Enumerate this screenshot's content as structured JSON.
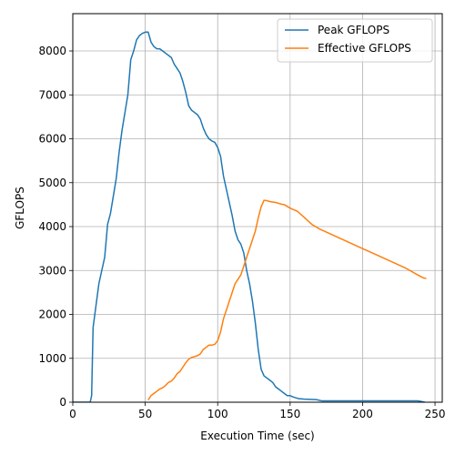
{
  "chart_data": {
    "type": "line",
    "title": "",
    "xlabel": "Execution Time (sec)",
    "ylabel": "GFLOPS",
    "xlim": [
      0,
      255
    ],
    "ylim": [
      0,
      8850
    ],
    "xticks": [
      0,
      50,
      100,
      150,
      200,
      250
    ],
    "yticks": [
      0,
      1000,
      2000,
      3000,
      4000,
      5000,
      6000,
      7000,
      8000
    ],
    "grid": true,
    "legend_position": "top-right",
    "series": [
      {
        "name": "Peak GFLOPS",
        "color": "#1f77b4",
        "points": [
          [
            0,
            0
          ],
          [
            5,
            0
          ],
          [
            12,
            0
          ],
          [
            13,
            150
          ],
          [
            14,
            1700
          ],
          [
            16,
            2200
          ],
          [
            18,
            2700
          ],
          [
            20,
            3000
          ],
          [
            22,
            3300
          ],
          [
            24,
            4050
          ],
          [
            26,
            4300
          ],
          [
            28,
            4700
          ],
          [
            30,
            5100
          ],
          [
            32,
            5700
          ],
          [
            34,
            6200
          ],
          [
            36,
            6600
          ],
          [
            38,
            7000
          ],
          [
            40,
            7800
          ],
          [
            42,
            8000
          ],
          [
            44,
            8250
          ],
          [
            46,
            8350
          ],
          [
            48,
            8400
          ],
          [
            50,
            8430
          ],
          [
            52,
            8430
          ],
          [
            54,
            8200
          ],
          [
            56,
            8100
          ],
          [
            58,
            8050
          ],
          [
            60,
            8050
          ],
          [
            62,
            8000
          ],
          [
            64,
            7950
          ],
          [
            66,
            7900
          ],
          [
            68,
            7850
          ],
          [
            70,
            7700
          ],
          [
            72,
            7600
          ],
          [
            74,
            7500
          ],
          [
            76,
            7300
          ],
          [
            78,
            7050
          ],
          [
            80,
            6750
          ],
          [
            82,
            6650
          ],
          [
            84,
            6600
          ],
          [
            86,
            6550
          ],
          [
            88,
            6450
          ],
          [
            90,
            6250
          ],
          [
            92,
            6100
          ],
          [
            94,
            6000
          ],
          [
            96,
            5950
          ],
          [
            98,
            5920
          ],
          [
            100,
            5800
          ],
          [
            102,
            5600
          ],
          [
            104,
            5150
          ],
          [
            106,
            4850
          ],
          [
            108,
            4550
          ],
          [
            110,
            4250
          ],
          [
            112,
            3900
          ],
          [
            114,
            3700
          ],
          [
            116,
            3600
          ],
          [
            118,
            3400
          ],
          [
            120,
            3000
          ],
          [
            122,
            2700
          ],
          [
            124,
            2300
          ],
          [
            126,
            1800
          ],
          [
            128,
            1200
          ],
          [
            130,
            750
          ],
          [
            132,
            600
          ],
          [
            134,
            550
          ],
          [
            136,
            500
          ],
          [
            138,
            450
          ],
          [
            140,
            350
          ],
          [
            142,
            300
          ],
          [
            144,
            250
          ],
          [
            146,
            200
          ],
          [
            148,
            150
          ],
          [
            150,
            150
          ],
          [
            152,
            120
          ],
          [
            154,
            100
          ],
          [
            156,
            80
          ],
          [
            160,
            70
          ],
          [
            168,
            60
          ],
          [
            172,
            30
          ],
          [
            180,
            30
          ],
          [
            200,
            30
          ],
          [
            220,
            30
          ],
          [
            238,
            30
          ],
          [
            240,
            20
          ],
          [
            243,
            0
          ]
        ]
      },
      {
        "name": "Effective GFLOPS",
        "color": "#ff7f0e",
        "points": [
          [
            52,
            50
          ],
          [
            54,
            150
          ],
          [
            56,
            200
          ],
          [
            58,
            250
          ],
          [
            60,
            300
          ],
          [
            62,
            330
          ],
          [
            64,
            380
          ],
          [
            66,
            450
          ],
          [
            68,
            480
          ],
          [
            70,
            550
          ],
          [
            72,
            650
          ],
          [
            74,
            700
          ],
          [
            76,
            800
          ],
          [
            78,
            900
          ],
          [
            80,
            980
          ],
          [
            82,
            1020
          ],
          [
            84,
            1040
          ],
          [
            86,
            1060
          ],
          [
            88,
            1100
          ],
          [
            90,
            1200
          ],
          [
            92,
            1250
          ],
          [
            94,
            1300
          ],
          [
            96,
            1300
          ],
          [
            98,
            1320
          ],
          [
            100,
            1400
          ],
          [
            102,
            1600
          ],
          [
            104,
            1900
          ],
          [
            106,
            2100
          ],
          [
            108,
            2300
          ],
          [
            110,
            2500
          ],
          [
            112,
            2700
          ],
          [
            114,
            2800
          ],
          [
            116,
            2900
          ],
          [
            118,
            3100
          ],
          [
            120,
            3300
          ],
          [
            122,
            3500
          ],
          [
            124,
            3700
          ],
          [
            126,
            3900
          ],
          [
            128,
            4200
          ],
          [
            130,
            4450
          ],
          [
            132,
            4600
          ],
          [
            134,
            4590
          ],
          [
            136,
            4570
          ],
          [
            138,
            4560
          ],
          [
            140,
            4550
          ],
          [
            142,
            4530
          ],
          [
            144,
            4510
          ],
          [
            146,
            4500
          ],
          [
            148,
            4460
          ],
          [
            150,
            4420
          ],
          [
            152,
            4390
          ],
          [
            155,
            4350
          ],
          [
            160,
            4200
          ],
          [
            165,
            4050
          ],
          [
            170,
            3950
          ],
          [
            180,
            3800
          ],
          [
            190,
            3650
          ],
          [
            200,
            3500
          ],
          [
            210,
            3350
          ],
          [
            220,
            3200
          ],
          [
            230,
            3050
          ],
          [
            238,
            2900
          ],
          [
            242,
            2830
          ],
          [
            244,
            2820
          ]
        ]
      }
    ]
  }
}
